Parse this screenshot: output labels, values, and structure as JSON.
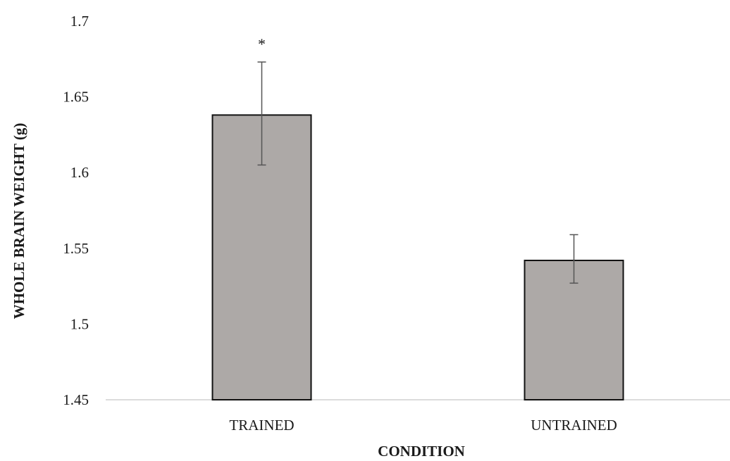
{
  "chart_data": {
    "type": "bar",
    "title": "",
    "xlabel": "CONDITION",
    "ylabel": "WHOLE BRAIN WEIGHT (g)",
    "categories": [
      "TRAINED",
      "UNTRAINED"
    ],
    "values": [
      1.638,
      1.542
    ],
    "error_low": [
      1.605,
      1.527
    ],
    "error_high": [
      1.673,
      1.559
    ],
    "annotations": [
      "*",
      ""
    ],
    "ylim": [
      1.45,
      1.7
    ],
    "yticks": [
      "1.45",
      "1.5",
      "1.55",
      "1.6",
      "1.65",
      "1.7"
    ],
    "grid": false,
    "legend": "none",
    "colors": {
      "bar_fill": "#ada9a7",
      "bar_stroke": "#111111",
      "error_bar": "#555555",
      "axis_line": "#d0d0d0"
    }
  }
}
